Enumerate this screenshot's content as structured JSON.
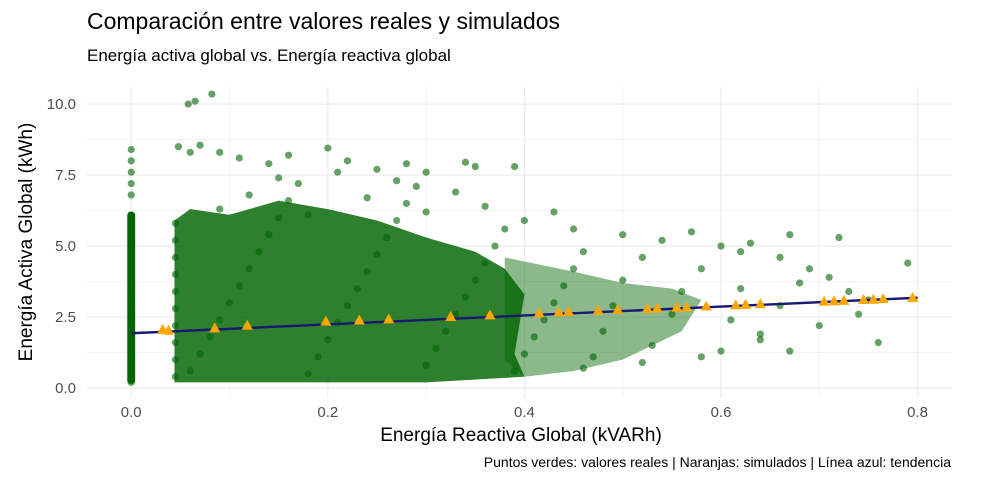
{
  "chart_data": {
    "type": "scatter",
    "title": "Comparación entre valores reales y simulados",
    "subtitle": "Energía activa global vs. Energía reactiva global",
    "xlabel": "Energía Reactiva Global (kVARh)",
    "ylabel": "Energía Activa Global (kWh)",
    "caption": "Puntos verdes: valores reales | Naranjas: simulados | Línea azul: tendencia",
    "xlim": [
      -0.045,
      0.835
    ],
    "ylim": [
      -0.35,
      10.6
    ],
    "x_ticks": [
      {
        "value": 0.0,
        "label": "0.0"
      },
      {
        "value": 0.2,
        "label": "0.2"
      },
      {
        "value": 0.4,
        "label": "0.4"
      },
      {
        "value": 0.6,
        "label": "0.6"
      },
      {
        "value": 0.8,
        "label": "0.8"
      }
    ],
    "y_ticks": [
      {
        "value": 0.0,
        "label": "0.0"
      },
      {
        "value": 2.5,
        "label": "2.5"
      },
      {
        "value": 5.0,
        "label": "5.0"
      },
      {
        "value": 7.5,
        "label": "7.5"
      },
      {
        "value": 10.0,
        "label": "10.0"
      }
    ],
    "grid": true,
    "colors": {
      "real": "#006400",
      "simulated": "#FFA500",
      "trend": "#191970"
    },
    "series": [
      {
        "type": "scatter",
        "points": [
          [
            0.0,
            0.2
          ],
          [
            0.0,
            0.5
          ],
          [
            0.0,
            0.9
          ],
          [
            0.0,
            1.3
          ],
          [
            0.0,
            1.7
          ],
          [
            0.0,
            2.1
          ],
          [
            0.0,
            2.5
          ],
          [
            0.0,
            2.9
          ],
          [
            0.0,
            3.3
          ],
          [
            0.0,
            3.7
          ],
          [
            0.0,
            4.1
          ],
          [
            0.0,
            4.5
          ],
          [
            0.0,
            4.9
          ],
          [
            0.0,
            5.3
          ],
          [
            0.0,
            5.7
          ],
          [
            0.0,
            6.1
          ],
          [
            0.0,
            6.8
          ],
          [
            0.0,
            7.2
          ],
          [
            0.0,
            7.6
          ],
          [
            0.0,
            8.0
          ],
          [
            0.0,
            8.4
          ],
          [
            0.045,
            0.4
          ],
          [
            0.045,
            1.0
          ],
          [
            0.045,
            1.6
          ],
          [
            0.045,
            2.2
          ],
          [
            0.045,
            2.8
          ],
          [
            0.045,
            3.4
          ],
          [
            0.045,
            4.0
          ],
          [
            0.045,
            4.6
          ],
          [
            0.045,
            5.2
          ],
          [
            0.045,
            5.8
          ],
          [
            0.058,
            10.0
          ],
          [
            0.065,
            10.1
          ],
          [
            0.082,
            10.35
          ],
          [
            0.048,
            8.5
          ],
          [
            0.06,
            8.3
          ],
          [
            0.07,
            8.55
          ],
          [
            0.09,
            8.3
          ],
          [
            0.11,
            8.1
          ],
          [
            0.14,
            7.9
          ],
          [
            0.16,
            8.2
          ],
          [
            0.2,
            8.45
          ],
          [
            0.22,
            8.0
          ],
          [
            0.25,
            7.7
          ],
          [
            0.28,
            7.9
          ],
          [
            0.3,
            7.6
          ],
          [
            0.34,
            7.95
          ],
          [
            0.35,
            7.8
          ],
          [
            0.39,
            7.8
          ],
          [
            0.06,
            0.6
          ],
          [
            0.07,
            1.2
          ],
          [
            0.08,
            1.8
          ],
          [
            0.09,
            2.4
          ],
          [
            0.1,
            3.0
          ],
          [
            0.11,
            3.6
          ],
          [
            0.12,
            4.2
          ],
          [
            0.13,
            4.8
          ],
          [
            0.14,
            5.4
          ],
          [
            0.15,
            6.0
          ],
          [
            0.16,
            6.6
          ],
          [
            0.17,
            7.2
          ],
          [
            0.18,
            0.5
          ],
          [
            0.19,
            1.1
          ],
          [
            0.2,
            1.7
          ],
          [
            0.21,
            2.3
          ],
          [
            0.22,
            2.9
          ],
          [
            0.23,
            3.5
          ],
          [
            0.24,
            4.1
          ],
          [
            0.25,
            4.7
          ],
          [
            0.26,
            5.3
          ],
          [
            0.27,
            5.9
          ],
          [
            0.28,
            6.5
          ],
          [
            0.29,
            7.1
          ],
          [
            0.3,
            0.8
          ],
          [
            0.31,
            1.4
          ],
          [
            0.32,
            2.0
          ],
          [
            0.33,
            2.6
          ],
          [
            0.34,
            3.2
          ],
          [
            0.35,
            3.8
          ],
          [
            0.36,
            4.4
          ],
          [
            0.37,
            5.0
          ],
          [
            0.38,
            5.6
          ],
          [
            0.39,
            0.6
          ],
          [
            0.4,
            1.2
          ],
          [
            0.41,
            1.8
          ],
          [
            0.42,
            2.4
          ],
          [
            0.43,
            3.0
          ],
          [
            0.44,
            3.6
          ],
          [
            0.45,
            4.2
          ],
          [
            0.46,
            4.8
          ],
          [
            0.47,
            1.1
          ],
          [
            0.48,
            2.0
          ],
          [
            0.49,
            2.9
          ],
          [
            0.5,
            3.8
          ],
          [
            0.52,
            4.6
          ],
          [
            0.53,
            1.5
          ],
          [
            0.55,
            2.6
          ],
          [
            0.56,
            3.4
          ],
          [
            0.58,
            4.2
          ],
          [
            0.6,
            1.3
          ],
          [
            0.61,
            2.4
          ],
          [
            0.62,
            3.5
          ],
          [
            0.63,
            5.1
          ],
          [
            0.64,
            1.9
          ],
          [
            0.66,
            2.9
          ],
          [
            0.68,
            3.7
          ],
          [
            0.7,
            2.2
          ],
          [
            0.72,
            5.3
          ],
          [
            0.73,
            3.4
          ],
          [
            0.74,
            2.6
          ],
          [
            0.79,
            4.4
          ],
          [
            0.09,
            6.3
          ],
          [
            0.12,
            6.8
          ],
          [
            0.15,
            7.4
          ],
          [
            0.18,
            6.1
          ],
          [
            0.21,
            7.6
          ],
          [
            0.24,
            6.7
          ],
          [
            0.27,
            7.3
          ],
          [
            0.3,
            6.2
          ],
          [
            0.33,
            6.9
          ],
          [
            0.36,
            6.4
          ],
          [
            0.4,
            5.9
          ],
          [
            0.43,
            6.2
          ],
          [
            0.45,
            5.6
          ],
          [
            0.5,
            5.4
          ],
          [
            0.54,
            5.2
          ],
          [
            0.57,
            5.5
          ],
          [
            0.6,
            5.0
          ],
          [
            0.62,
            4.8
          ],
          [
            0.66,
            4.6
          ],
          [
            0.67,
            5.4
          ],
          [
            0.69,
            4.2
          ],
          [
            0.71,
            3.9
          ],
          [
            0.75,
            3.1
          ],
          [
            0.76,
            1.6
          ],
          [
            0.64,
            1.7
          ],
          [
            0.58,
            1.1
          ],
          [
            0.52,
            0.9
          ],
          [
            0.46,
            0.7
          ],
          [
            0.67,
            1.3
          ]
        ]
      },
      {
        "type": "simulated",
        "points": [
          [
            0.032,
            2.05
          ],
          [
            0.038,
            2.02
          ],
          [
            0.085,
            2.1
          ],
          [
            0.118,
            2.2
          ],
          [
            0.198,
            2.34
          ],
          [
            0.232,
            2.38
          ],
          [
            0.262,
            2.42
          ],
          [
            0.325,
            2.5
          ],
          [
            0.365,
            2.56
          ],
          [
            0.415,
            2.63
          ],
          [
            0.435,
            2.66
          ],
          [
            0.445,
            2.68
          ],
          [
            0.475,
            2.72
          ],
          [
            0.495,
            2.75
          ],
          [
            0.525,
            2.79
          ],
          [
            0.535,
            2.8
          ],
          [
            0.555,
            2.83
          ],
          [
            0.565,
            2.84
          ],
          [
            0.585,
            2.87
          ],
          [
            0.615,
            2.91
          ],
          [
            0.625,
            2.93
          ],
          [
            0.64,
            2.95
          ],
          [
            0.705,
            3.04
          ],
          [
            0.715,
            3.05
          ],
          [
            0.725,
            3.07
          ],
          [
            0.745,
            3.1
          ],
          [
            0.755,
            3.11
          ],
          [
            0.765,
            3.13
          ],
          [
            0.795,
            3.17
          ]
        ]
      },
      {
        "type": "trend",
        "points": [
          [
            0.0,
            1.93
          ],
          [
            0.8,
            3.18
          ]
        ]
      }
    ]
  }
}
